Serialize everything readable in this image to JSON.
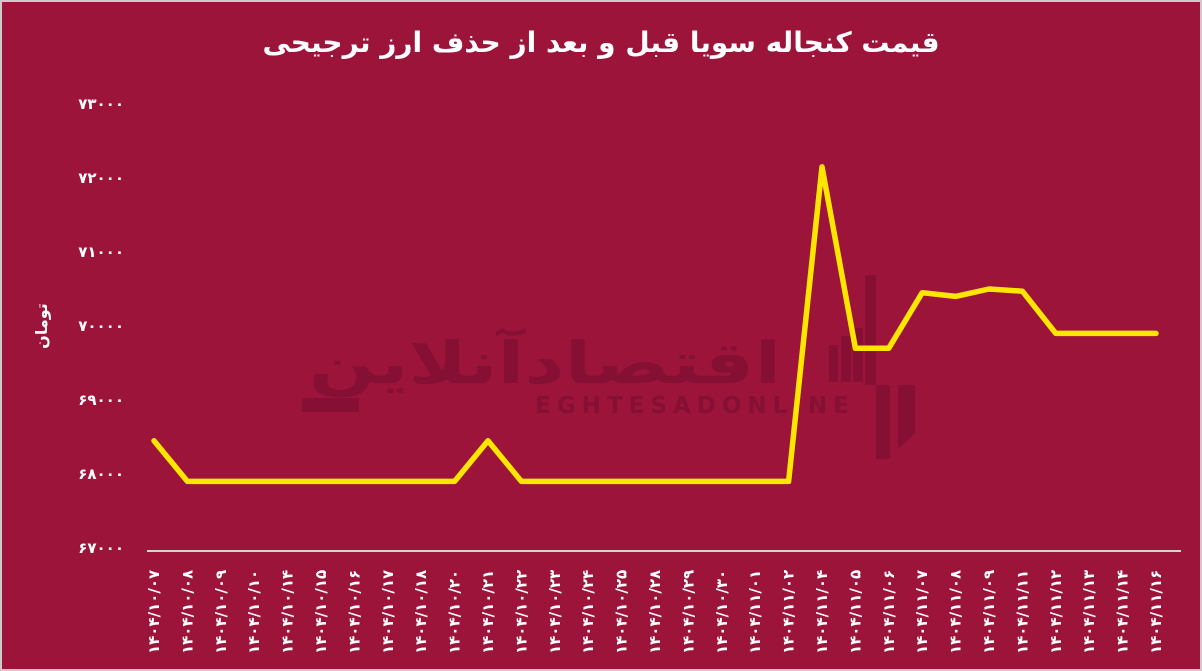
{
  "page": {
    "title": "قیمت کنجاله سویا قبل و بعد از حذف ارز ترجیحی"
  },
  "watermark": {
    "farsi": "اقتصادآنلاین",
    "latin": "EGHTESADONLINE"
  },
  "colors": {
    "background": "#9d143b",
    "border": "#cbcbcb",
    "line": "#ffe600",
    "text": "#ffffff",
    "watermark": "#851033",
    "axis": "#d8cfcf"
  },
  "chart_data": {
    "type": "line",
    "title": "قیمت کنجاله سویا قبل و بعد از حذف ارز ترجیحی",
    "xlabel": "",
    "ylabel": "تومان",
    "ylim": [
      67000,
      73000
    ],
    "grid": false,
    "legend": false,
    "line_color": "#ffe600",
    "categories": [
      "۱۴۰۴/۱۰/۰۷",
      "۱۴۰۴/۱۰/۰۸",
      "۱۴۰۴/۱۰/۰۹",
      "۱۴۰۴/۱۰/۱۰",
      "۱۴۰۴/۱۰/۱۴",
      "۱۴۰۴/۱۰/۱۵",
      "۱۴۰۴/۱۰/۱۶",
      "۱۴۰۴/۱۰/۱۷",
      "۱۴۰۴/۱۰/۱۸",
      "۱۴۰۴/۱۰/۲۰",
      "۱۴۰۴/۱۰/۲۱",
      "۱۴۰۴/۱۰/۲۲",
      "۱۴۰۴/۱۰/۲۳",
      "۱۴۰۴/۱۰/۲۴",
      "۱۴۰۴/۱۰/۲۵",
      "۱۴۰۴/۱۰/۲۸",
      "۱۴۰۴/۱۰/۲۹",
      "۱۴۰۴/۱۰/۳۰",
      "۱۴۰۴/۱۱/۰۱",
      "۱۴۰۴/۱۱/۰۲",
      "۱۴۰۴/۱۱/۰۴",
      "۱۴۰۴/۱۱/۰۵",
      "۱۴۰۴/۱۱/۰۶",
      "۱۴۰۴/۱۱/۰۷",
      "۱۴۰۴/۱۱/۰۸",
      "۱۴۰۴/۱۱/۰۹",
      "۱۴۰۴/۱۱/۱۱",
      "۱۴۰۴/۱۱/۱۲",
      "۱۴۰۴/۱۱/۱۳",
      "۱۴۰۴/۱۱/۱۴",
      "۱۴۰۴/۱۱/۱۶"
    ],
    "values": [
      68450,
      67900,
      67900,
      67900,
      67900,
      67900,
      67900,
      67900,
      67900,
      67900,
      68450,
      67900,
      67900,
      67900,
      67900,
      67900,
      67900,
      67900,
      67900,
      67900,
      72150,
      69700,
      69700,
      70450,
      70400,
      70500,
      70470,
      69900,
      69900,
      69900,
      69900
    ],
    "ytick_values": [
      67000,
      68000,
      69000,
      70000,
      71000,
      72000,
      73000
    ],
    "ytick_labels": [
      "۶۷۰۰۰",
      "۶۸۰۰۰",
      "۶۹۰۰۰",
      "۷۰۰۰۰",
      "۷۱۰۰۰",
      "۷۲۰۰۰",
      "۷۳۰۰۰"
    ]
  }
}
